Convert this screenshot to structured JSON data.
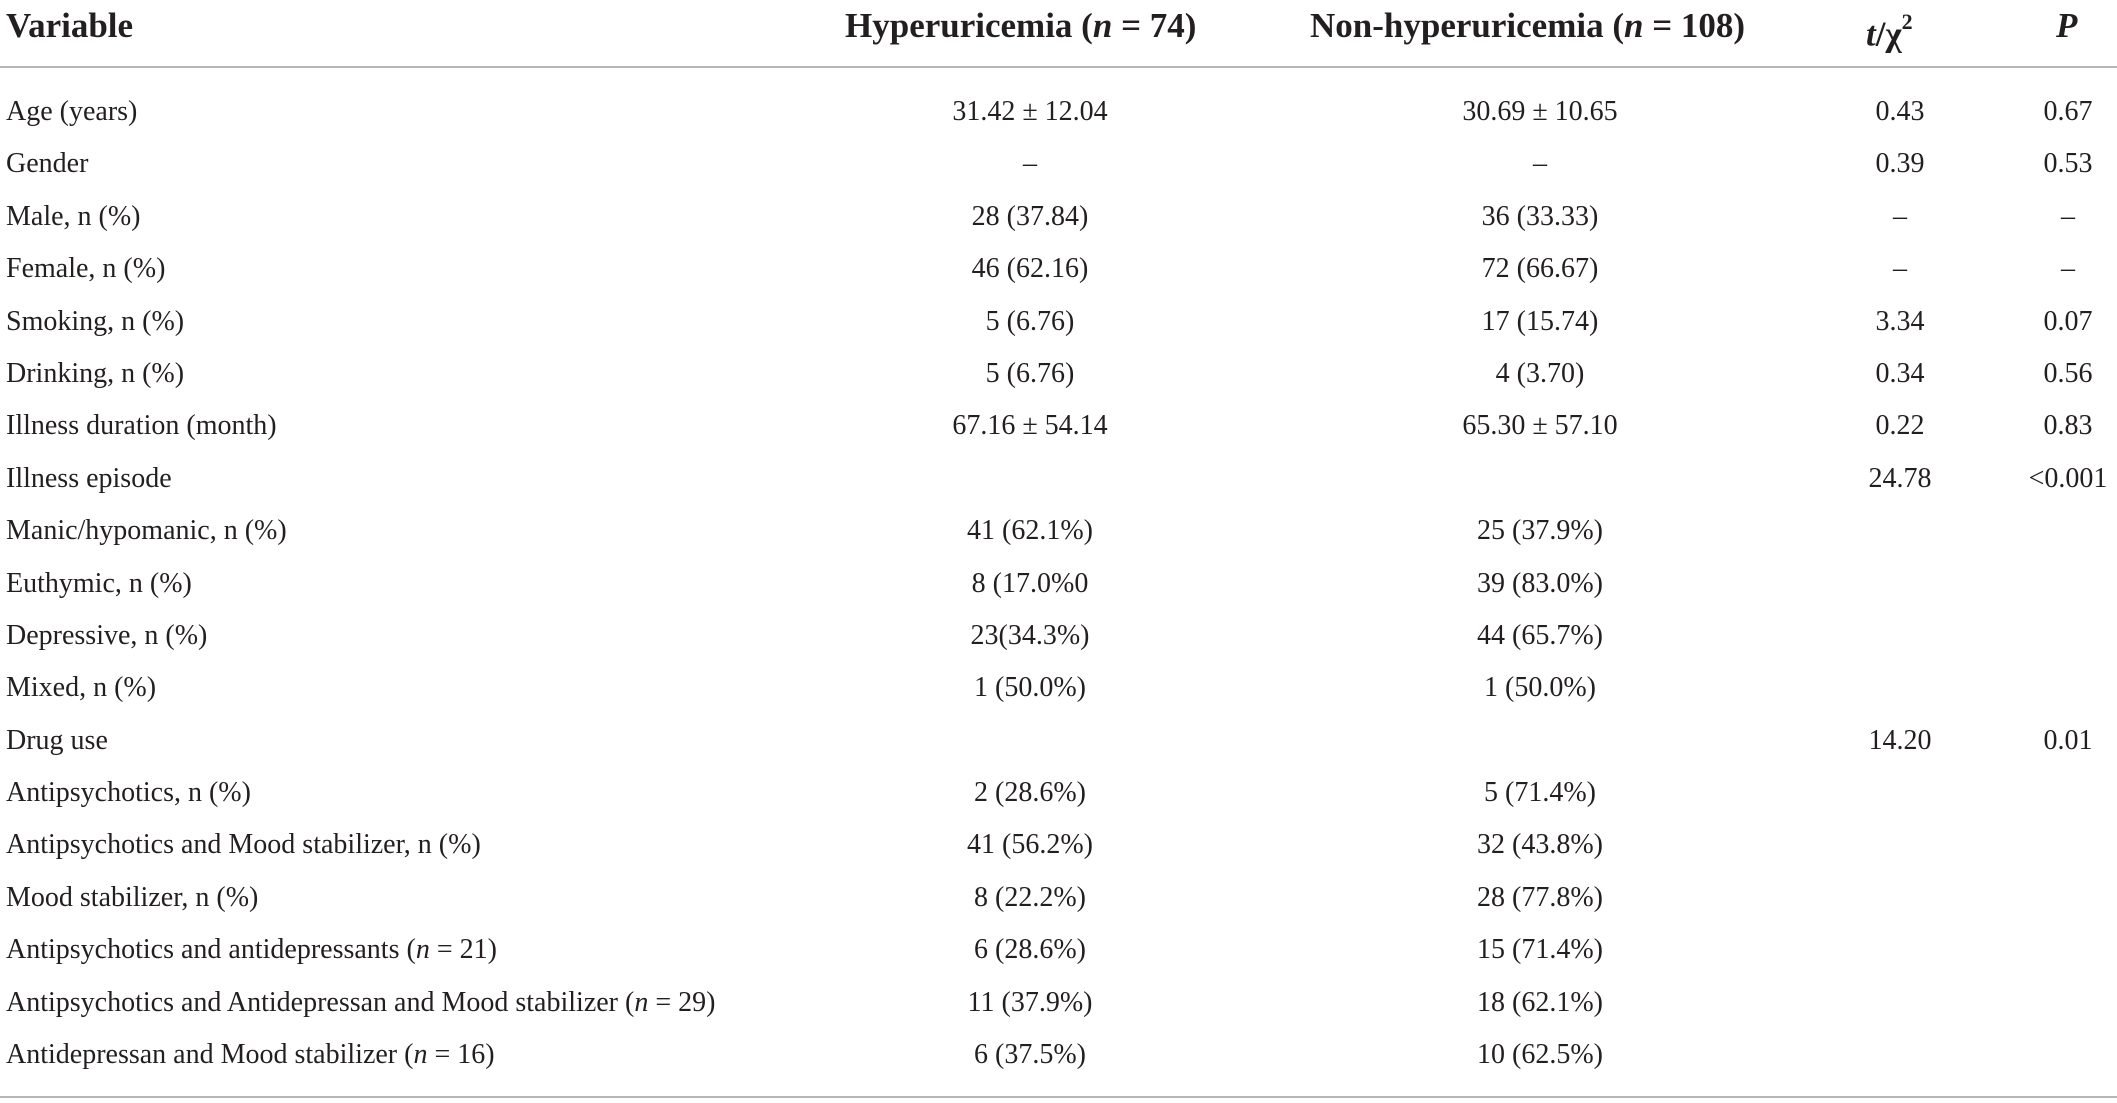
{
  "header": {
    "variable": "Variable",
    "hyper_prefix": "Hyperuricemia (",
    "hyper_n": "n",
    "hyper_suffix": " = 74)",
    "non_prefix": "Non-hyperuricemia (",
    "non_n": "n",
    "non_suffix": " = 108)",
    "stat_t": "t",
    "stat_sep": "/χ",
    "stat_sup": "2",
    "p": "P"
  },
  "rows": [
    {
      "variable": "Age (years)",
      "hyper": "31.42 ± 12.04",
      "non": "30.69 ± 10.65",
      "t": "0.43",
      "p": "0.67"
    },
    {
      "variable": "Gender",
      "hyper": "–",
      "non": "–",
      "t": "0.39",
      "p": "0.53"
    },
    {
      "variable": "Male, n (%)",
      "hyper": "28 (37.84)",
      "non": "36 (33.33)",
      "t": "–",
      "p": "–"
    },
    {
      "variable": "Female, n (%)",
      "hyper": "46 (62.16)",
      "non": "72 (66.67)",
      "t": "–",
      "p": "–"
    },
    {
      "variable": "Smoking, n (%)",
      "hyper": "5 (6.76)",
      "non": "17 (15.74)",
      "t": "3.34",
      "p": "0.07"
    },
    {
      "variable": "Drinking, n (%)",
      "hyper": "5 (6.76)",
      "non": "4 (3.70)",
      "t": "0.34",
      "p": "0.56"
    },
    {
      "variable": "Illness duration (month)",
      "hyper": "67.16 ± 54.14",
      "non": "65.30 ± 57.10",
      "t": "0.22",
      "p": "0.83"
    },
    {
      "variable": "Illness episode",
      "hyper": "",
      "non": "",
      "t": "24.78",
      "p": "<0.001"
    },
    {
      "variable": "Manic/hypomanic, n (%)",
      "hyper": "41 (62.1%)",
      "non": "25 (37.9%)",
      "t": "",
      "p": ""
    },
    {
      "variable": "Euthymic, n (%)",
      "hyper": "8 (17.0%0",
      "non": "39 (83.0%)",
      "t": "",
      "p": ""
    },
    {
      "variable": "Depressive, n (%)",
      "hyper": "23(34.3%)",
      "non": "44 (65.7%)",
      "t": "",
      "p": ""
    },
    {
      "variable": "Mixed, n (%)",
      "hyper": "1 (50.0%)",
      "non": "1 (50.0%)",
      "t": "",
      "p": ""
    },
    {
      "variable": "Drug use",
      "hyper": "",
      "non": "",
      "t": "14.20",
      "p": "0.01"
    },
    {
      "variable": "Antipsychotics, n (%)",
      "hyper": "2 (28.6%)",
      "non": "5 (71.4%)",
      "t": "",
      "p": ""
    },
    {
      "variable": "Antipsychotics and Mood stabilizer, n (%)",
      "hyper": "41 (56.2%)",
      "non": "32 (43.8%)",
      "t": "",
      "p": ""
    },
    {
      "variable": "Mood stabilizer, n (%)",
      "hyper": "8 (22.2%)",
      "non": "28 (77.8%)",
      "t": "",
      "p": ""
    },
    {
      "variable": "Antipsychotics and antidepressants (",
      "var_n": "n",
      "var_tail": " = 21)",
      "hyper": "6 (28.6%)",
      "non": "15 (71.4%)",
      "t": "",
      "p": ""
    },
    {
      "variable": "Antipsychotics and Antidepressan and Mood stabilizer (",
      "var_n": "n",
      "var_tail": " = 29)",
      "hyper": "11 (37.9%)",
      "non": "18 (62.1%)",
      "t": "",
      "p": ""
    },
    {
      "variable": "Antidepressan and Mood stabilizer (",
      "var_n": "n",
      "var_tail": " = 16)",
      "hyper": "6 (37.5%)",
      "non": "10 (62.5%)",
      "t": "",
      "p": ""
    }
  ]
}
